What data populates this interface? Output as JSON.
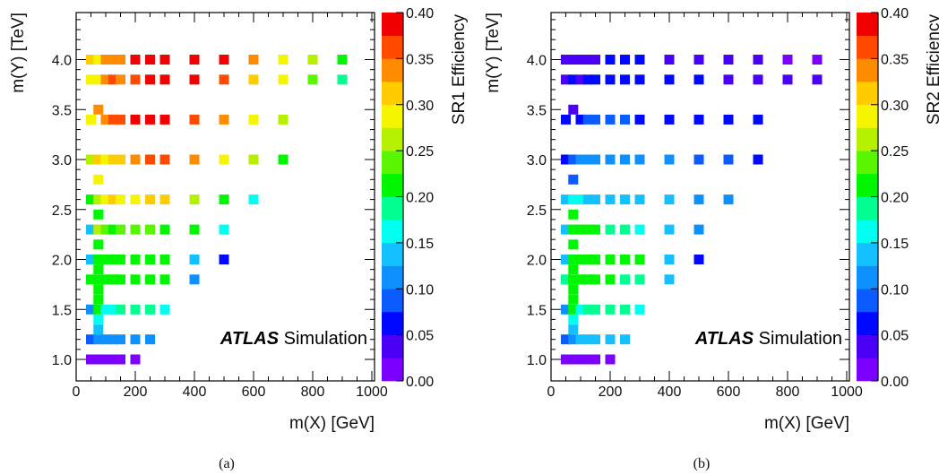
{
  "chart_data": [
    {
      "type": "heatmap",
      "panel": "(a)",
      "xlabel": "m(X) [GeV]",
      "ylabel": "m(Y) [TeV]",
      "zlabel": "SR1 Efficiency",
      "xlim": [
        0,
        1000
      ],
      "ylim": [
        0.9,
        4.45
      ],
      "zlim": [
        0,
        0.4
      ],
      "xticks": [
        "0",
        "200",
        "400",
        "600",
        "800",
        "1000"
      ],
      "yticks": [
        "1.0",
        "1.5",
        "2.0",
        "2.5",
        "3.0",
        "3.5",
        "4.0"
      ],
      "zticks": [
        "0.00",
        "0.05",
        "0.10",
        "0.15",
        "0.20",
        "0.25",
        "0.30",
        "0.35",
        "0.40"
      ],
      "annotation_bold": "ATLAS",
      "annotation": "Simulation",
      "points": [
        [
          50,
          4.0,
          0.31
        ],
        [
          75,
          4.0,
          0.29
        ],
        [
          100,
          4.0,
          0.33
        ],
        [
          125,
          4.0,
          0.35
        ],
        [
          150,
          4.0,
          0.33
        ],
        [
          200,
          4.0,
          0.38
        ],
        [
          250,
          4.0,
          0.39
        ],
        [
          300,
          4.0,
          0.39
        ],
        [
          400,
          4.0,
          0.39
        ],
        [
          500,
          4.0,
          0.39
        ],
        [
          600,
          4.0,
          0.35
        ],
        [
          700,
          4.0,
          0.3
        ],
        [
          800,
          4.0,
          0.26
        ],
        [
          900,
          4.0,
          0.22
        ],
        [
          50,
          3.8,
          0.29
        ],
        [
          75,
          3.8,
          0.3
        ],
        [
          100,
          3.8,
          0.34
        ],
        [
          125,
          3.8,
          0.36
        ],
        [
          150,
          3.8,
          0.35
        ],
        [
          200,
          3.8,
          0.37
        ],
        [
          250,
          3.8,
          0.38
        ],
        [
          300,
          3.8,
          0.38
        ],
        [
          400,
          3.8,
          0.38
        ],
        [
          500,
          3.8,
          0.36
        ],
        [
          600,
          3.8,
          0.32
        ],
        [
          700,
          3.8,
          0.28
        ],
        [
          800,
          3.8,
          0.23
        ],
        [
          900,
          3.8,
          0.18
        ],
        [
          75,
          3.5,
          0.35
        ],
        [
          50,
          3.4,
          0.29
        ],
        [
          100,
          3.4,
          0.34
        ],
        [
          125,
          3.4,
          0.36
        ],
        [
          150,
          3.4,
          0.36
        ],
        [
          200,
          3.4,
          0.38
        ],
        [
          250,
          3.4,
          0.38
        ],
        [
          300,
          3.4,
          0.38
        ],
        [
          400,
          3.4,
          0.37
        ],
        [
          500,
          3.4,
          0.33
        ],
        [
          600,
          3.4,
          0.3
        ],
        [
          700,
          3.4,
          0.27
        ],
        [
          50,
          3.0,
          0.25
        ],
        [
          75,
          3.0,
          0.31
        ],
        [
          100,
          3.0,
          0.3
        ],
        [
          125,
          3.0,
          0.31
        ],
        [
          150,
          3.0,
          0.32
        ],
        [
          200,
          3.0,
          0.35
        ],
        [
          250,
          3.0,
          0.37
        ],
        [
          300,
          3.0,
          0.37
        ],
        [
          400,
          3.0,
          0.33
        ],
        [
          500,
          3.0,
          0.3
        ],
        [
          600,
          3.0,
          0.26
        ],
        [
          700,
          3.0,
          0.22
        ],
        [
          75,
          2.8,
          0.3
        ],
        [
          50,
          2.6,
          0.22
        ],
        [
          75,
          2.6,
          0.26
        ],
        [
          100,
          2.6,
          0.28
        ],
        [
          125,
          2.6,
          0.31
        ],
        [
          150,
          2.6,
          0.29
        ],
        [
          200,
          2.6,
          0.3
        ],
        [
          250,
          2.6,
          0.32
        ],
        [
          300,
          2.6,
          0.31
        ],
        [
          400,
          2.6,
          0.27
        ],
        [
          500,
          2.6,
          0.22
        ],
        [
          600,
          2.6,
          0.17
        ],
        [
          75,
          2.45,
          0.22
        ],
        [
          50,
          2.3,
          0.15
        ],
        [
          75,
          2.3,
          0.25
        ],
        [
          100,
          2.3,
          0.23
        ],
        [
          125,
          2.3,
          0.22
        ],
        [
          150,
          2.3,
          0.24
        ],
        [
          200,
          2.3,
          0.23
        ],
        [
          250,
          2.3,
          0.23
        ],
        [
          300,
          2.3,
          0.22
        ],
        [
          400,
          2.3,
          0.21
        ],
        [
          500,
          2.3,
          0.16
        ],
        [
          75,
          2.15,
          0.22
        ],
        [
          50,
          2.0,
          0.13
        ],
        [
          75,
          2.0,
          0.21
        ],
        [
          100,
          2.0,
          0.21
        ],
        [
          125,
          2.0,
          0.21
        ],
        [
          150,
          2.0,
          0.21
        ],
        [
          200,
          2.0,
          0.21
        ],
        [
          250,
          2.0,
          0.21
        ],
        [
          300,
          2.0,
          0.21
        ],
        [
          400,
          2.0,
          0.13
        ],
        [
          500,
          2.0,
          0.07
        ],
        [
          75,
          1.9,
          0.21
        ],
        [
          50,
          1.8,
          0.2
        ],
        [
          75,
          1.8,
          0.21
        ],
        [
          100,
          1.8,
          0.21
        ],
        [
          125,
          1.8,
          0.21
        ],
        [
          150,
          1.8,
          0.2
        ],
        [
          200,
          1.8,
          0.2
        ],
        [
          250,
          1.8,
          0.2
        ],
        [
          300,
          1.8,
          0.2
        ],
        [
          400,
          1.8,
          0.12
        ],
        [
          75,
          1.7,
          0.2
        ],
        [
          75,
          1.6,
          0.2
        ],
        [
          50,
          1.5,
          0.12
        ],
        [
          75,
          1.5,
          0.2
        ],
        [
          100,
          1.5,
          0.17
        ],
        [
          125,
          1.5,
          0.17
        ],
        [
          150,
          1.5,
          0.18
        ],
        [
          200,
          1.5,
          0.19
        ],
        [
          250,
          1.5,
          0.19
        ],
        [
          300,
          1.5,
          0.16
        ],
        [
          75,
          1.4,
          0.17
        ],
        [
          75,
          1.3,
          0.14
        ],
        [
          50,
          1.2,
          0.08
        ],
        [
          75,
          1.2,
          0.12
        ],
        [
          100,
          1.2,
          0.11
        ],
        [
          125,
          1.2,
          0.11
        ],
        [
          150,
          1.2,
          0.11
        ],
        [
          200,
          1.2,
          0.1
        ],
        [
          250,
          1.2,
          0.1
        ],
        [
          50,
          1.0,
          0.02
        ],
        [
          75,
          1.0,
          0.02
        ],
        [
          100,
          1.0,
          0.02
        ],
        [
          125,
          1.0,
          0.02
        ],
        [
          150,
          1.0,
          0.02
        ],
        [
          200,
          1.0,
          0.02
        ]
      ]
    },
    {
      "type": "heatmap",
      "panel": "(b)",
      "xlabel": "m(X) [GeV]",
      "ylabel": "m(Y) [TeV]",
      "zlabel": "SR2 Efficiency",
      "xlim": [
        0,
        1000
      ],
      "ylim": [
        0.9,
        4.45
      ],
      "zlim": [
        0,
        0.4
      ],
      "xticks": [
        "0",
        "200",
        "400",
        "600",
        "800",
        "1000"
      ],
      "yticks": [
        "1.0",
        "1.5",
        "2.0",
        "2.5",
        "3.0",
        "3.5",
        "4.0"
      ],
      "zticks": [
        "0.00",
        "0.05",
        "0.10",
        "0.15",
        "0.20",
        "0.25",
        "0.30",
        "0.35",
        "0.40"
      ],
      "annotation_bold": "ATLAS",
      "annotation": "Simulation",
      "points": [
        [
          50,
          4.0,
          0.03
        ],
        [
          75,
          4.0,
          0.03
        ],
        [
          100,
          4.0,
          0.03
        ],
        [
          125,
          4.0,
          0.03
        ],
        [
          150,
          4.0,
          0.03
        ],
        [
          200,
          4.0,
          0.05
        ],
        [
          250,
          4.0,
          0.05
        ],
        [
          300,
          4.0,
          0.05
        ],
        [
          400,
          4.0,
          0.04
        ],
        [
          500,
          4.0,
          0.03
        ],
        [
          600,
          4.0,
          0.03
        ],
        [
          700,
          4.0,
          0.03
        ],
        [
          800,
          4.0,
          0.02
        ],
        [
          900,
          4.0,
          0.02
        ],
        [
          50,
          3.8,
          0.04
        ],
        [
          75,
          3.8,
          0.05
        ],
        [
          100,
          3.8,
          0.04
        ],
        [
          125,
          3.8,
          0.05
        ],
        [
          150,
          3.8,
          0.05
        ],
        [
          200,
          3.8,
          0.06
        ],
        [
          250,
          3.8,
          0.06
        ],
        [
          300,
          3.8,
          0.05
        ],
        [
          400,
          3.8,
          0.05
        ],
        [
          500,
          3.8,
          0.05
        ],
        [
          600,
          3.8,
          0.04
        ],
        [
          700,
          3.8,
          0.04
        ],
        [
          800,
          3.8,
          0.03
        ],
        [
          900,
          3.8,
          0.03
        ],
        [
          75,
          3.5,
          0.03
        ],
        [
          50,
          3.4,
          0.06
        ],
        [
          100,
          3.4,
          0.07
        ],
        [
          125,
          3.4,
          0.08
        ],
        [
          150,
          3.4,
          0.08
        ],
        [
          200,
          3.4,
          0.08
        ],
        [
          250,
          3.4,
          0.08
        ],
        [
          300,
          3.4,
          0.07
        ],
        [
          400,
          3.4,
          0.07
        ],
        [
          500,
          3.4,
          0.07
        ],
        [
          600,
          3.4,
          0.06
        ],
        [
          700,
          3.4,
          0.06
        ],
        [
          50,
          3.0,
          0.05
        ],
        [
          75,
          3.0,
          0.09
        ],
        [
          100,
          3.0,
          0.1
        ],
        [
          125,
          3.0,
          0.12
        ],
        [
          150,
          3.0,
          0.12
        ],
        [
          200,
          3.0,
          0.12
        ],
        [
          250,
          3.0,
          0.12
        ],
        [
          300,
          3.0,
          0.11
        ],
        [
          400,
          3.0,
          0.1
        ],
        [
          500,
          3.0,
          0.09
        ],
        [
          600,
          3.0,
          0.08
        ],
        [
          700,
          3.0,
          0.06
        ],
        [
          75,
          2.8,
          0.09
        ],
        [
          50,
          2.6,
          0.14
        ],
        [
          75,
          2.6,
          0.16
        ],
        [
          100,
          2.6,
          0.16
        ],
        [
          125,
          2.6,
          0.15
        ],
        [
          150,
          2.6,
          0.15
        ],
        [
          200,
          2.6,
          0.15
        ],
        [
          250,
          2.6,
          0.15
        ],
        [
          300,
          2.6,
          0.14
        ],
        [
          400,
          2.6,
          0.13
        ],
        [
          500,
          2.6,
          0.12
        ],
        [
          600,
          2.6,
          0.1
        ],
        [
          75,
          2.45,
          0.21
        ],
        [
          50,
          2.3,
          0.15
        ],
        [
          75,
          2.3,
          0.2
        ],
        [
          100,
          2.3,
          0.21
        ],
        [
          125,
          2.3,
          0.21
        ],
        [
          150,
          2.3,
          0.21
        ],
        [
          200,
          2.3,
          0.19
        ],
        [
          250,
          2.3,
          0.18
        ],
        [
          300,
          2.3,
          0.17
        ],
        [
          400,
          2.3,
          0.15
        ],
        [
          500,
          2.3,
          0.12
        ],
        [
          75,
          2.15,
          0.21
        ],
        [
          50,
          2.0,
          0.13
        ],
        [
          75,
          2.0,
          0.21
        ],
        [
          100,
          2.0,
          0.21
        ],
        [
          125,
          2.0,
          0.21
        ],
        [
          150,
          2.0,
          0.21
        ],
        [
          200,
          2.0,
          0.21
        ],
        [
          250,
          2.0,
          0.21
        ],
        [
          300,
          2.0,
          0.2
        ],
        [
          400,
          2.0,
          0.13
        ],
        [
          500,
          2.0,
          0.07
        ],
        [
          75,
          1.9,
          0.21
        ],
        [
          50,
          1.8,
          0.19
        ],
        [
          75,
          1.8,
          0.21
        ],
        [
          100,
          1.8,
          0.21
        ],
        [
          125,
          1.8,
          0.21
        ],
        [
          150,
          1.8,
          0.2
        ],
        [
          200,
          1.8,
          0.2
        ],
        [
          250,
          1.8,
          0.19
        ],
        [
          300,
          1.8,
          0.19
        ],
        [
          400,
          1.8,
          0.15
        ],
        [
          75,
          1.7,
          0.2
        ],
        [
          75,
          1.6,
          0.2
        ],
        [
          50,
          1.5,
          0.12
        ],
        [
          75,
          1.5,
          0.21
        ],
        [
          100,
          1.5,
          0.17
        ],
        [
          125,
          1.5,
          0.18
        ],
        [
          150,
          1.5,
          0.18
        ],
        [
          200,
          1.5,
          0.19
        ],
        [
          250,
          1.5,
          0.19
        ],
        [
          300,
          1.5,
          0.17
        ],
        [
          75,
          1.4,
          0.17
        ],
        [
          75,
          1.3,
          0.14
        ],
        [
          50,
          1.2,
          0.08
        ],
        [
          75,
          1.2,
          0.12
        ],
        [
          100,
          1.2,
          0.13
        ],
        [
          125,
          1.2,
          0.14
        ],
        [
          150,
          1.2,
          0.14
        ],
        [
          200,
          1.2,
          0.15
        ],
        [
          250,
          1.2,
          0.15
        ],
        [
          50,
          1.0,
          0.02
        ],
        [
          75,
          1.0,
          0.02
        ],
        [
          100,
          1.0,
          0.02
        ],
        [
          125,
          1.0,
          0.02
        ],
        [
          150,
          1.0,
          0.02
        ],
        [
          200,
          1.0,
          0.02
        ]
      ]
    }
  ],
  "palette": [
    "#7b00ff",
    "#4a00f5",
    "#0008ff",
    "#0a5cff",
    "#0f90ff",
    "#14c0ff",
    "#00ffee",
    "#00ff90",
    "#00f500",
    "#5af500",
    "#b4f000",
    "#f5f500",
    "#ffcc00",
    "#ff8c00",
    "#ff4a00",
    "#f00000"
  ]
}
